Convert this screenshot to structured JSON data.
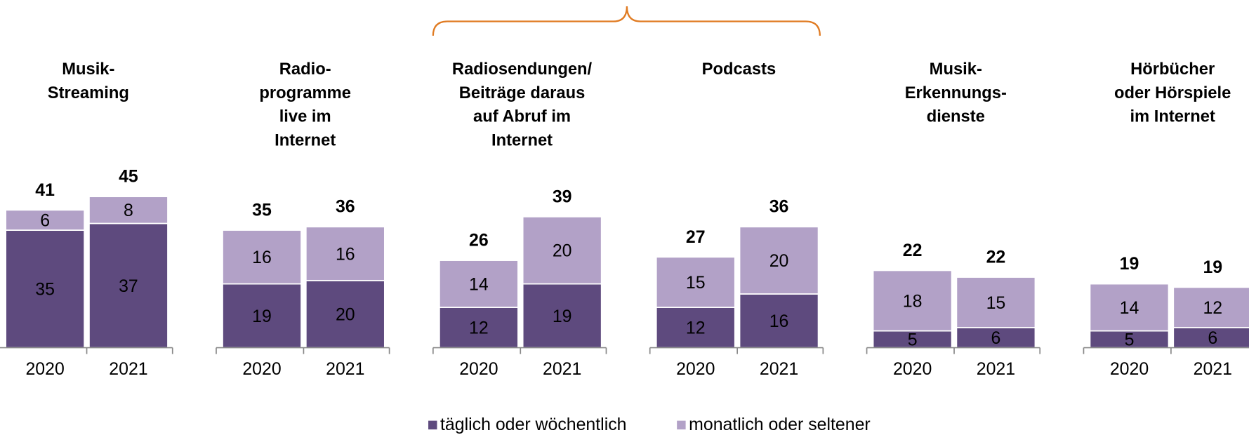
{
  "legend": [
    {
      "name": "täglich oder wöchentlich",
      "color": "#5e4a7e"
    },
    {
      "name": "monatlich oder seltener",
      "color": "#b2a1c7"
    }
  ],
  "chart_data": [
    {
      "type": "bar",
      "title": [
        "Musik-",
        "Streaming"
      ],
      "categories": [
        "2020",
        "2021"
      ],
      "series": [
        {
          "values": [
            35,
            37
          ]
        },
        {
          "values": [
            6,
            8
          ]
        }
      ],
      "totals": [
        41,
        45
      ],
      "ylim": [
        0,
        50
      ]
    },
    {
      "type": "bar",
      "title": [
        "Radio-",
        "programme",
        "live im",
        "Internet"
      ],
      "categories": [
        "2020",
        "2021"
      ],
      "series": [
        {
          "values": [
            19,
            20
          ]
        },
        {
          "values": [
            16,
            16
          ]
        }
      ],
      "totals": [
        35,
        36
      ],
      "ylim": [
        0,
        50
      ]
    },
    {
      "type": "bar",
      "title": [
        "Radiosendungen/",
        "Beiträge daraus",
        "auf Abruf im",
        "Internet"
      ],
      "categories": [
        "2020",
        "2021"
      ],
      "series": [
        {
          "values": [
            12,
            19
          ]
        },
        {
          "values": [
            14,
            20
          ]
        }
      ],
      "totals": [
        26,
        39
      ],
      "ylim": [
        0,
        50
      ]
    },
    {
      "type": "bar",
      "title": [
        "Podcasts"
      ],
      "categories": [
        "2020",
        "2021"
      ],
      "series": [
        {
          "values": [
            12,
            16
          ]
        },
        {
          "values": [
            15,
            20
          ]
        }
      ],
      "totals": [
        27,
        36
      ],
      "ylim": [
        0,
        50
      ]
    },
    {
      "type": "bar",
      "title": [
        "Musik-",
        "Erkennungs-",
        "dienste"
      ],
      "categories": [
        "2020",
        "2021"
      ],
      "series": [
        {
          "values": [
            5,
            6
          ]
        },
        {
          "values": [
            18,
            15
          ]
        }
      ],
      "totals": [
        22,
        22
      ],
      "ylim": [
        0,
        50
      ]
    },
    {
      "type": "bar",
      "title": [
        "Hörbücher",
        "oder Hörspiele",
        "im Internet"
      ],
      "categories": [
        "2020",
        "2021"
      ],
      "series": [
        {
          "values": [
            5,
            6
          ]
        },
        {
          "values": [
            14,
            12
          ]
        }
      ],
      "totals": [
        19,
        19
      ],
      "ylim": [
        0,
        50
      ]
    }
  ]
}
